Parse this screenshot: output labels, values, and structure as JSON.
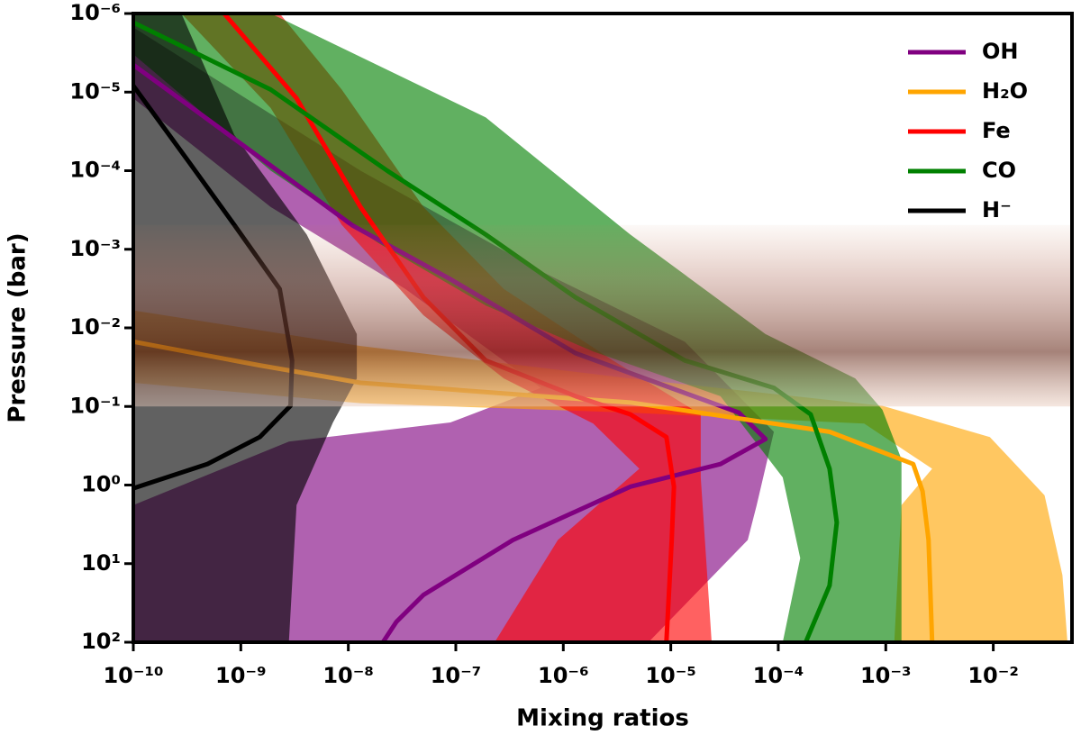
{
  "chart_data": {
    "type": "line",
    "xlabel": "Mixing ratios",
    "ylabel": "Pressure (bar)",
    "xscale": "log",
    "yscale": "log",
    "y_inverted": true,
    "xlim": [
      1e-10,
      0.054
    ],
    "ylim": [
      1e-06,
      100
    ],
    "xticks": [
      {
        "value": 1e-10,
        "label": "10⁻¹⁰"
      },
      {
        "value": 1e-09,
        "label": "10⁻⁹"
      },
      {
        "value": 1e-08,
        "label": "10⁻⁸"
      },
      {
        "value": 1e-07,
        "label": "10⁻⁷"
      },
      {
        "value": 1e-06,
        "label": "10⁻⁶"
      },
      {
        "value": 1e-05,
        "label": "10⁻⁵"
      },
      {
        "value": 0.0001,
        "label": "10⁻⁴"
      },
      {
        "value": 0.001,
        "label": "10⁻³"
      },
      {
        "value": 0.01,
        "label": "10⁻²"
      }
    ],
    "yticks": [
      {
        "value": 1e-06,
        "label": "10⁻⁶"
      },
      {
        "value": 1e-05,
        "label": "10⁻⁵"
      },
      {
        "value": 0.0001,
        "label": "10⁻⁴"
      },
      {
        "value": 0.001,
        "label": "10⁻³"
      },
      {
        "value": 0.01,
        "label": "10⁻²"
      },
      {
        "value": 0.1,
        "label": "10⁻¹"
      },
      {
        "value": 1,
        "label": "10⁰"
      },
      {
        "value": 10,
        "label": "10¹"
      },
      {
        "value": 100,
        "label": "10²"
      }
    ],
    "legend": "upper right",
    "highlight_ylim": [
      0.00049,
      0.1
    ],
    "series": [
      {
        "name": "OH",
        "color": "#800080",
        "x": [
          1e-10,
          1.1e-08,
          8.9e-08,
          1.3e-06,
          4.3e-05,
          7.6e-05,
          2.9e-05,
          4.2e-06,
          3.4e-07,
          5e-08,
          2.8e-08,
          2.1e-08
        ],
        "y": [
          4.5e-06,
          0.0005,
          0.0024,
          0.021,
          0.12,
          0.26,
          0.54,
          1.05,
          5,
          25,
          55,
          100
        ],
        "band_x": [
          1e-10,
          1.3e-08,
          6.2e-07,
          1.35e-05,
          9.1e-05,
          6.3e-05,
          5.2e-05,
          6.2e-06,
          1e-10,
          1e-10,
          2.8e-09,
          8.9e-08,
          6.2e-07,
          3.4e-08,
          1.9e-09,
          1e-10
        ],
        "band_y": [
          1.5e-06,
          0.0001,
          0.0019,
          0.015,
          0.21,
          1.8,
          5,
          100,
          100,
          1.8,
          0.28,
          0.16,
          0.058,
          0.0032,
          0.00029,
          1.2e-05
        ]
      },
      {
        "name": "H₂O",
        "color": "#ffa500",
        "x": [
          1e-10,
          1.5e-09,
          1.3e-08,
          6.2e-07,
          4.2e-06,
          0.0003,
          0.0018,
          0.0022,
          0.0025,
          0.0027
        ],
        "y": [
          0.015,
          0.03,
          0.05,
          0.074,
          0.089,
          0.21,
          0.54,
          1.2,
          5,
          100
        ],
        "band_x": [
          1e-10,
          1.3e-08,
          4.2e-06,
          0.00093,
          0.0093,
          0.03,
          0.044,
          0.049,
          0.0012,
          0.0014,
          0.0027,
          0.00063,
          4.2e-06,
          1.3e-08,
          1e-10
        ],
        "band_y": [
          0.006,
          0.017,
          0.044,
          0.098,
          0.245,
          1.35,
          14,
          100,
          100,
          1.8,
          0.62,
          0.165,
          0.12,
          0.091,
          0.05
        ]
      },
      {
        "name": "Fe",
        "color": "#ff0000",
        "x": [
          7e-10,
          3.3e-09,
          1.3e-08,
          5e-08,
          1.9e-07,
          1.3e-06,
          4.2e-06,
          9.1e-06,
          1.07e-05,
          1.02e-05,
          9.1e-06
        ],
        "y": [
          1e-06,
          1.2e-05,
          0.00029,
          0.0041,
          0.026,
          0.074,
          0.126,
          0.245,
          1.05,
          5,
          100
        ],
        "band_x": [
          2.8e-10,
          2.3e-09,
          8.7e-09,
          5e-08,
          2.8e-07,
          2.9e-06,
          1.9e-05,
          1.9e-05,
          2.4e-05,
          2.3e-07,
          8.9e-07,
          5.1e-06,
          1.9e-06,
          2.8e-07,
          5e-08,
          8.7e-09,
          1.9e-09
        ],
        "band_y": [
          1e-06,
          1e-06,
          9.3e-06,
          0.00029,
          0.0032,
          0.026,
          0.126,
          0.8,
          100,
          100,
          5,
          0.62,
          0.165,
          0.044,
          0.0069,
          0.00049,
          1.6e-05
        ]
      },
      {
        "name": "CO",
        "color": "#008000",
        "x": [
          1e-10,
          1.9e-09,
          2.3e-08,
          1.9e-07,
          1.3e-06,
          1.35e-05,
          9.1e-05,
          0.0002,
          0.0003,
          0.00035,
          0.0003,
          0.00018
        ],
        "y": [
          1.3e-06,
          9.3e-06,
          0.0001,
          0.00065,
          0.0041,
          0.026,
          0.058,
          0.126,
          0.62,
          3,
          19,
          100
        ],
        "band_x": [
          1.9e-09,
          1.9e-07,
          4.2e-06,
          7.6e-05,
          0.00052,
          0.00093,
          0.0014,
          0.0014,
          0.00011,
          0.00016,
          0.00011,
          2.9e-05,
          1.9e-06,
          1.9e-07,
          1.9e-08,
          1.9e-09,
          1e-10,
          1e-10
        ],
        "band_y": [
          1e-06,
          2.1e-05,
          0.00065,
          0.012,
          0.044,
          0.11,
          0.47,
          100,
          100,
          8.5,
          0.8,
          0.074,
          0.02,
          0.0052,
          0.00083,
          0.0001,
          3.3e-06,
          1e-06
        ]
      },
      {
        "name": "H⁻",
        "color": "#000000",
        "x": [
          1e-10,
          3.3e-10,
          8.7e-10,
          2.3e-09,
          3e-09,
          2.9e-09,
          1.5e-09,
          4.9e-10,
          1e-10
        ],
        "y": [
          8.3e-06,
          7.8e-05,
          0.00049,
          0.0032,
          0.026,
          0.098,
          0.245,
          0.54,
          1.1
        ],
        "band_x": [
          2.8e-10,
          8.7e-10,
          4.1e-09,
          1.2e-08,
          1.2e-08,
          7.2e-09,
          3.3e-09,
          2.8e-09,
          1e-10,
          1e-10
        ],
        "band_y": [
          1e-06,
          3.5e-05,
          0.00065,
          0.012,
          0.044,
          0.16,
          1.8,
          100,
          100,
          1e-06
        ]
      }
    ]
  }
}
